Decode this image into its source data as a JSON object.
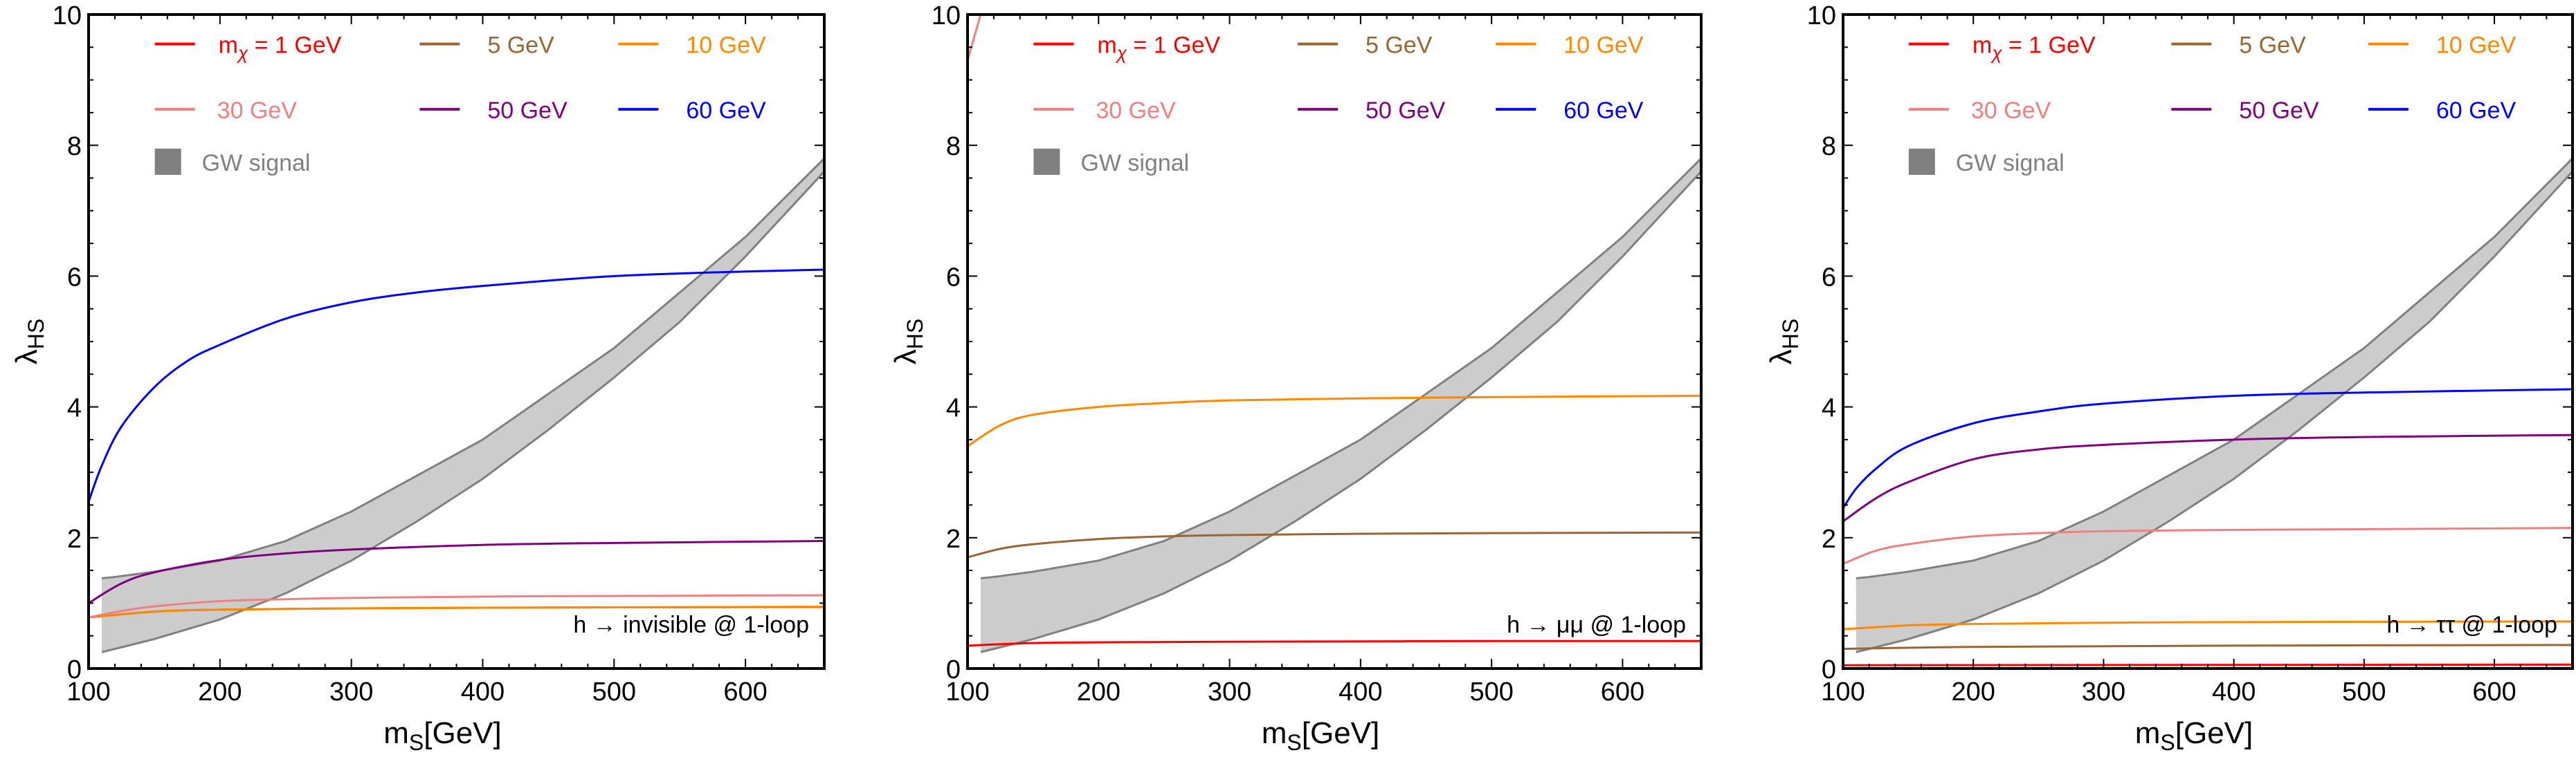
{
  "chart_data": [
    {
      "type": "line",
      "annotation": "h → invisible @ 1-loop",
      "xlabel": {
        "base": "m",
        "sub": "S",
        "rest": "[GeV]"
      },
      "ylabel": {
        "base": "λ",
        "sub": "HS"
      },
      "xlim": [
        100,
        660
      ],
      "ylim": [
        0,
        10
      ],
      "xticks": [
        100,
        200,
        300,
        400,
        500,
        600
      ],
      "yticks": [
        0,
        2,
        4,
        6,
        8,
        10
      ],
      "legend_position": "top",
      "series": [
        {
          "name": "5 GeV",
          "color": "#996633",
          "x": [
            100,
            150,
            200,
            300,
            400,
            500,
            660
          ],
          "y": [
            0.78,
            0.87,
            0.9,
            0.92,
            0.93,
            0.935,
            0.94
          ]
        },
        {
          "name": "10 GeV",
          "color": "#ff8800",
          "x": [
            100,
            150,
            200,
            300,
            400,
            500,
            660
          ],
          "y": [
            0.78,
            0.87,
            0.9,
            0.92,
            0.93,
            0.935,
            0.945
          ]
        },
        {
          "name": "30 GeV",
          "color": "#f08080",
          "x": [
            100,
            125,
            150,
            200,
            250,
            300,
            400,
            500,
            660
          ],
          "y": [
            0.78,
            0.88,
            0.95,
            1.03,
            1.06,
            1.08,
            1.1,
            1.11,
            1.12
          ]
        },
        {
          "name": "50 GeV",
          "color": "#800080",
          "x": [
            100,
            125,
            150,
            200,
            250,
            300,
            400,
            500,
            660
          ],
          "y": [
            1.0,
            1.3,
            1.47,
            1.66,
            1.76,
            1.82,
            1.89,
            1.92,
            1.95
          ]
        },
        {
          "name": "60 GeV",
          "color": "#0000ff",
          "x": [
            100,
            110,
            125,
            150,
            175,
            200,
            250,
            300,
            350,
            400,
            500,
            600,
            660
          ],
          "y": [
            2.55,
            3.1,
            3.7,
            4.3,
            4.7,
            4.95,
            5.35,
            5.6,
            5.75,
            5.85,
            6.0,
            6.07,
            6.1
          ]
        }
      ]
    },
    {
      "type": "line",
      "annotation": "h → μμ @ 1-loop",
      "xlabel": {
        "base": "m",
        "sub": "S",
        "rest": "[GeV]"
      },
      "ylabel": {
        "base": "λ",
        "sub": "HS"
      },
      "xlim": [
        100,
        660
      ],
      "ylim": [
        0,
        10
      ],
      "xticks": [
        100,
        200,
        300,
        400,
        500,
        600
      ],
      "yticks": [
        0,
        2,
        4,
        6,
        8,
        10
      ],
      "legend_position": "top",
      "series": [
        {
          "name": "1 GeV",
          "color": "#ff0000",
          "x": [
            100,
            150,
            200,
            300,
            400,
            500,
            660
          ],
          "y": [
            0.35,
            0.39,
            0.4,
            0.41,
            0.415,
            0.42,
            0.42
          ]
        },
        {
          "name": "5 GeV",
          "color": "#996633",
          "x": [
            100,
            125,
            150,
            200,
            250,
            300,
            400,
            500,
            660
          ],
          "y": [
            1.7,
            1.83,
            1.9,
            1.98,
            2.02,
            2.04,
            2.06,
            2.07,
            2.08
          ]
        },
        {
          "name": "10 GeV",
          "color": "#ff8800",
          "x": [
            100,
            125,
            150,
            200,
            250,
            300,
            400,
            500,
            660
          ],
          "y": [
            3.4,
            3.72,
            3.88,
            4.0,
            4.06,
            4.1,
            4.13,
            4.15,
            4.17
          ]
        },
        {
          "name": "30 GeV",
          "color": "#f08080",
          "x": [
            100,
            105,
            110
          ],
          "y": [
            9.3,
            9.65,
            10.0
          ]
        }
      ]
    },
    {
      "type": "line",
      "annotation": "h → ττ @ 1-loop",
      "xlabel": {
        "base": "m",
        "sub": "S",
        "rest": "[GeV]"
      },
      "ylabel": {
        "base": "λ",
        "sub": "HS"
      },
      "xlim": [
        100,
        660
      ],
      "ylim": [
        0,
        10
      ],
      "xticks": [
        100,
        200,
        300,
        400,
        500,
        600
      ],
      "yticks": [
        0,
        2,
        4,
        6,
        8,
        10
      ],
      "legend_position": "top",
      "series": [
        {
          "name": "1 GeV",
          "color": "#ff0000",
          "x": [
            100,
            660
          ],
          "y": [
            0.05,
            0.06
          ]
        },
        {
          "name": "5 GeV",
          "color": "#996633",
          "x": [
            100,
            200,
            400,
            660
          ],
          "y": [
            0.3,
            0.33,
            0.35,
            0.36
          ]
        },
        {
          "name": "10 GeV",
          "color": "#ff8800",
          "x": [
            100,
            150,
            200,
            300,
            400,
            660
          ],
          "y": [
            0.6,
            0.66,
            0.68,
            0.7,
            0.71,
            0.72
          ]
        },
        {
          "name": "30 GeV",
          "color": "#f08080",
          "x": [
            100,
            125,
            150,
            200,
            250,
            300,
            400,
            500,
            660
          ],
          "y": [
            1.6,
            1.8,
            1.9,
            2.02,
            2.07,
            2.1,
            2.12,
            2.13,
            2.15
          ]
        },
        {
          "name": "50 GeV",
          "color": "#800080",
          "x": [
            100,
            125,
            150,
            200,
            250,
            300,
            400,
            500,
            660
          ],
          "y": [
            2.25,
            2.6,
            2.85,
            3.2,
            3.35,
            3.42,
            3.5,
            3.54,
            3.57
          ]
        },
        {
          "name": "60 GeV",
          "color": "#0000ff",
          "x": [
            100,
            110,
            125,
            150,
            200,
            250,
            300,
            400,
            500,
            660
          ],
          "y": [
            2.45,
            2.75,
            3.05,
            3.4,
            3.75,
            3.93,
            4.05,
            4.17,
            4.22,
            4.27
          ]
        }
      ]
    }
  ],
  "gw_band": {
    "name": "GW signal",
    "fill": "#cccccc",
    "stroke": "#808080",
    "legend_color": "#808080",
    "x": [
      110,
      120,
      150,
      200,
      250,
      300,
      350,
      400,
      450,
      500,
      550,
      600,
      660
    ],
    "upper": [
      1.38,
      1.4,
      1.48,
      1.65,
      1.95,
      2.4,
      2.95,
      3.5,
      4.2,
      4.9,
      5.75,
      6.6,
      7.8
    ],
    "lower": [
      0.25,
      0.3,
      0.45,
      0.75,
      1.15,
      1.65,
      2.25,
      2.9,
      3.65,
      4.45,
      5.3,
      6.3,
      7.6
    ]
  },
  "legend": {
    "prefix": {
      "base": "m",
      "sub": "χ",
      "eq": " = "
    },
    "items": [
      {
        "label": "1 GeV",
        "color": "#ff0000"
      },
      {
        "label": "5 GeV",
        "color": "#996633"
      },
      {
        "label": "10 GeV",
        "color": "#ff8800"
      },
      {
        "label": "30 GeV",
        "color": "#f08080"
      },
      {
        "label": "50 GeV",
        "color": "#800080"
      },
      {
        "label": "60 GeV",
        "color": "#0000ff"
      }
    ]
  }
}
